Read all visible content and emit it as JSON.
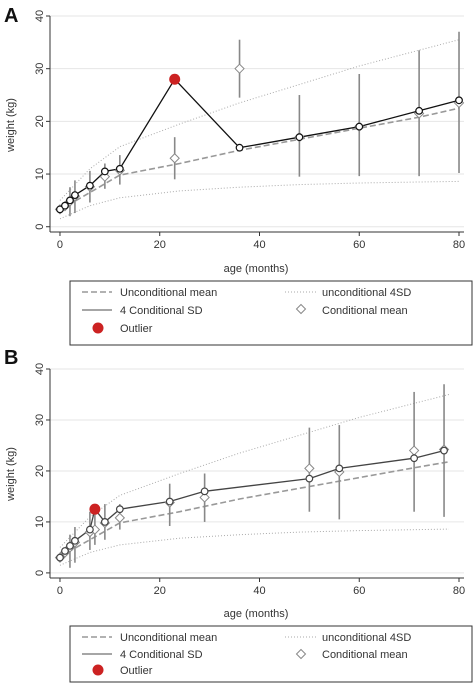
{
  "chart_data": [
    {
      "panel": "A",
      "type": "line",
      "xlabel": "age (months)",
      "ylabel": "weight (kg)",
      "xlim": [
        -2,
        81
      ],
      "ylim": [
        -1,
        40
      ],
      "x_ticks": [
        0,
        20,
        40,
        60,
        80
      ],
      "y_ticks": [
        0,
        10,
        20,
        30,
        40
      ],
      "grid": "horizontal",
      "legend_position": "bottom",
      "legend": {
        "unconditional_mean": "Unconditional mean",
        "unconditional_4sd": "unconditional 4SD",
        "conditional_sd": "4 Conditional SD",
        "conditional_mean": "Conditional mean",
        "outlier": "Outlier"
      },
      "colors": {
        "observed": "#111111",
        "conditional": "#888888",
        "band": "#aaaaaa",
        "outlier": "#cc2222"
      },
      "unconditional_mean": {
        "x": [
          0,
          12,
          24,
          36,
          48,
          60,
          72,
          80
        ],
        "y": [
          3.2,
          9.8,
          12.0,
          14.5,
          16.6,
          18.7,
          20.8,
          22.5
        ]
      },
      "unconditional_4sd_upper": {
        "x": [
          0,
          6,
          12,
          24,
          36,
          48,
          60,
          72,
          80
        ],
        "y": [
          5,
          11,
          15.2,
          19.5,
          23.5,
          27,
          30.5,
          33.5,
          35.5
        ]
      },
      "unconditional_4sd_lower": {
        "x": [
          0,
          6,
          12,
          24,
          36,
          48,
          60,
          72,
          80
        ],
        "y": [
          1.5,
          4,
          5.5,
          6.8,
          7.5,
          8.0,
          8.3,
          8.5,
          8.6
        ]
      },
      "observed": {
        "x": [
          0,
          1,
          2,
          3,
          6,
          9,
          12,
          23,
          36,
          48,
          60,
          72,
          80
        ],
        "y": [
          3.3,
          4.0,
          5.0,
          6.0,
          7.8,
          10.5,
          11.0,
          28.0,
          15.0,
          17.0,
          19.0,
          22.0,
          24.0
        ]
      },
      "conditional_mean": {
        "x": [
          0,
          1,
          2,
          3,
          6,
          9,
          12,
          23,
          36,
          48,
          60,
          72,
          80
        ],
        "y": [
          3.3,
          3.9,
          4.8,
          5.8,
          7.6,
          9.5,
          10.7,
          13.0,
          30.0,
          17.0,
          19.0,
          21.5,
          23.5
        ]
      },
      "conditional_sd": {
        "x": [
          2,
          3,
          6,
          9,
          12,
          23,
          36,
          48,
          60,
          72,
          80
        ],
        "low": [
          2,
          2.6,
          4.6,
          7.2,
          8.0,
          9.0,
          24.5,
          9.5,
          9.6,
          9.6,
          10.2
        ],
        "high": [
          7.5,
          8.8,
          10.6,
          12.0,
          13.6,
          17.0,
          35.5,
          25.0,
          29.0,
          33.5,
          37.0
        ]
      },
      "outlier": {
        "x": 23,
        "y": 28.0
      }
    },
    {
      "panel": "B",
      "type": "line",
      "xlabel": "age (months)",
      "ylabel": "weight (kg)",
      "xlim": [
        -2,
        81
      ],
      "ylim": [
        -1,
        40
      ],
      "x_ticks": [
        0,
        20,
        40,
        60,
        80
      ],
      "y_ticks": [
        0,
        10,
        20,
        30,
        40
      ],
      "grid": "horizontal",
      "legend_position": "bottom",
      "legend": {
        "unconditional_mean": "Unconditional mean",
        "unconditional_4sd": "unconditional 4SD",
        "conditional_sd": "4 Conditional SD",
        "conditional_mean": "Conditional mean",
        "outlier": "Outlier"
      },
      "colors": {
        "observed": "#444444",
        "conditional": "#888888",
        "band": "#aaaaaa",
        "outlier": "#cc2222"
      },
      "unconditional_mean": {
        "x": [
          0,
          12,
          24,
          36,
          48,
          60,
          72,
          78
        ],
        "y": [
          3.2,
          9.8,
          12.0,
          14.5,
          16.6,
          18.7,
          20.8,
          21.8
        ]
      },
      "unconditional_4sd_upper": {
        "x": [
          0,
          6,
          12,
          24,
          36,
          48,
          60,
          72,
          78
        ],
        "y": [
          5,
          11,
          15.2,
          19.5,
          23.5,
          27,
          30.5,
          33.5,
          35.0
        ]
      },
      "unconditional_4sd_lower": {
        "x": [
          0,
          6,
          12,
          24,
          36,
          48,
          60,
          72,
          78
        ],
        "y": [
          1.5,
          4,
          5.5,
          6.8,
          7.5,
          8.0,
          8.3,
          8.5,
          8.6
        ]
      },
      "observed": {
        "x": [
          0,
          1,
          2,
          3,
          6,
          7,
          9,
          12,
          22,
          29,
          50,
          56,
          71,
          77
        ],
        "y": [
          3.0,
          4.3,
          5.3,
          6.3,
          8.5,
          12.5,
          10.0,
          12.5,
          14.0,
          16.0,
          18.5,
          20.5,
          22.5,
          24.0
        ]
      },
      "conditional_mean": {
        "x": [
          0,
          1,
          2,
          3,
          6,
          7,
          9,
          12,
          22,
          29,
          50,
          56,
          71,
          77
        ],
        "y": [
          3.0,
          4.0,
          5.0,
          6.0,
          8.0,
          8.5,
          9.8,
          10.8,
          13.8,
          14.8,
          20.5,
          19.8,
          24.0,
          24.2
        ]
      },
      "conditional_sd": {
        "x": [
          2,
          3,
          6,
          7,
          9,
          12,
          22,
          29,
          50,
          56,
          71,
          77
        ],
        "low": [
          1,
          2,
          4.5,
          5.5,
          6.5,
          8.5,
          9.2,
          10.0,
          12.0,
          10.5,
          12.0,
          11.0
        ],
        "high": [
          7.5,
          9.0,
          12.0,
          12.0,
          13.5,
          13.5,
          17.5,
          19.5,
          28.5,
          29.0,
          35.5,
          37.0
        ]
      },
      "outlier": {
        "x": 7,
        "y": 12.5
      }
    }
  ]
}
